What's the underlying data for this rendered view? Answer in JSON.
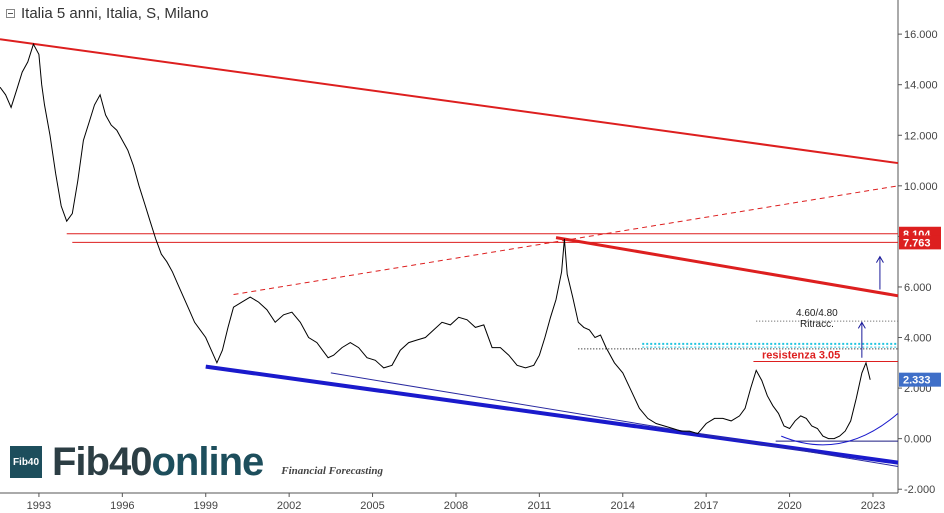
{
  "header": {
    "title": "Italia 5 anni, Italia, S, Milano"
  },
  "logo": {
    "badge": "Fib40",
    "word_a": "Fib40",
    "word_b": "online",
    "tagline": "Financial Forecasting"
  },
  "colors": {
    "price": "#000000",
    "red_channel": "#dd1f1f",
    "blue_support": "#1a1acc",
    "cyan_dotted": "#22c5e0",
    "price_label_bg": "#3f6fc8"
  },
  "chart_data": {
    "type": "line",
    "title": "Italia 5 anni, Italia, S, Milano",
    "xlabel": "",
    "ylabel": "",
    "x_ticks": [
      "1993",
      "1996",
      "1999",
      "2002",
      "2005",
      "2008",
      "2011",
      "2014",
      "2017",
      "2020",
      "2023"
    ],
    "y_ticks": [
      "16.000",
      "14.000",
      "12.000",
      "10.000",
      "8.000",
      "6.000",
      "4.000",
      "2.000",
      "0.000",
      "-2.000"
    ],
    "xlim": [
      1991.6,
      2023.9
    ],
    "ylim": [
      -2.15,
      17.35
    ],
    "grid": false,
    "series": [
      {
        "x": [
          1991.6,
          1991.8,
          1992.0,
          1992.2,
          1992.4,
          1992.6,
          1992.8,
          1993.0,
          1993.1,
          1993.2,
          1993.4,
          1993.6,
          1993.8,
          1994.0,
          1994.2,
          1994.4,
          1994.6,
          1994.8,
          1995.0,
          1995.2,
          1995.4,
          1995.6,
          1995.8,
          1996.0,
          1996.2,
          1996.4,
          1996.6,
          1996.8,
          1997.0,
          1997.2,
          1997.4,
          1997.6,
          1997.8,
          1998.0,
          1998.2,
          1998.4,
          1998.6,
          1998.8,
          1999.0,
          1999.2,
          1999.4,
          1999.6,
          1999.8,
          2000.0,
          2000.3,
          2000.6,
          2000.9,
          2001.2,
          2001.5,
          2001.8,
          2002.1,
          2002.4,
          2002.7,
          2003.0,
          2003.2,
          2003.4,
          2003.6,
          2003.9,
          2004.2,
          2004.5,
          2004.8,
          2005.1,
          2005.4,
          2005.7,
          2006.0,
          2006.3,
          2006.6,
          2006.9,
          2007.2,
          2007.5,
          2007.8,
          2008.1,
          2008.4,
          2008.7,
          2009.0,
          2009.3,
          2009.6,
          2009.9,
          2010.2,
          2010.5,
          2010.8,
          2011.0,
          2011.2,
          2011.4,
          2011.6,
          2011.8,
          2011.9,
          2012.0,
          2012.2,
          2012.4,
          2012.6,
          2012.8,
          2013.0,
          2013.2,
          2013.4,
          2013.7,
          2014.0,
          2014.3,
          2014.6,
          2014.9,
          2015.2,
          2015.5,
          2015.8,
          2016.1,
          2016.4,
          2016.7,
          2017.0,
          2017.3,
          2017.6,
          2017.9,
          2018.2,
          2018.4,
          2018.6,
          2018.8,
          2019.0,
          2019.2,
          2019.4,
          2019.6,
          2019.8,
          2020.0,
          2020.2,
          2020.4,
          2020.6,
          2020.8,
          2021.0,
          2021.2,
          2021.4,
          2021.6,
          2021.8,
          2022.0,
          2022.2,
          2022.4,
          2022.6,
          2022.75,
          2022.9
        ],
        "y": [
          13.9,
          13.6,
          13.1,
          13.8,
          14.5,
          14.9,
          15.6,
          15.2,
          14.0,
          13.2,
          12.0,
          10.5,
          9.2,
          8.6,
          8.9,
          10.2,
          11.8,
          12.5,
          13.2,
          13.6,
          12.8,
          12.4,
          12.2,
          11.8,
          11.4,
          10.8,
          10.0,
          9.3,
          8.6,
          7.9,
          7.3,
          7.0,
          6.6,
          6.1,
          5.6,
          5.1,
          4.6,
          4.3,
          4.0,
          3.5,
          3.0,
          3.5,
          4.4,
          5.2,
          5.4,
          5.6,
          5.4,
          5.1,
          4.6,
          4.9,
          5.0,
          4.6,
          4.0,
          3.8,
          3.5,
          3.2,
          3.3,
          3.6,
          3.8,
          3.6,
          3.2,
          3.1,
          2.8,
          2.9,
          3.5,
          3.8,
          3.9,
          4.0,
          4.3,
          4.6,
          4.5,
          4.8,
          4.7,
          4.4,
          4.5,
          3.6,
          3.6,
          3.3,
          2.9,
          2.8,
          2.9,
          3.3,
          4.0,
          4.8,
          5.5,
          6.6,
          7.9,
          6.5,
          5.6,
          4.6,
          4.4,
          4.3,
          4.0,
          4.1,
          3.6,
          3.0,
          2.6,
          1.9,
          1.2,
          0.8,
          0.6,
          0.5,
          0.4,
          0.3,
          0.3,
          0.2,
          0.6,
          0.8,
          0.8,
          0.7,
          0.9,
          1.2,
          2.0,
          2.7,
          2.3,
          1.7,
          1.3,
          1.0,
          0.5,
          0.4,
          0.7,
          0.9,
          0.8,
          0.5,
          0.4,
          0.1,
          0.0,
          0.0,
          0.1,
          0.3,
          0.7,
          1.6,
          2.6,
          3.0,
          2.33
        ]
      }
    ],
    "annotations": [
      {
        "text": "resistenza 3.05",
        "value": 3.05,
        "color": "#dd1f1f"
      },
      {
        "text": "4.60/4.80",
        "value": 4.7
      },
      {
        "text": "Ritracc.",
        "value": 4.45
      },
      {
        "text": "8.104",
        "value": 8.104,
        "color": "#dd1f1f"
      },
      {
        "text": "7.763",
        "value": 7.763,
        "color": "#dd1f1f"
      },
      {
        "text": "2.333",
        "value": 2.333,
        "color": "#3f6fc8"
      }
    ]
  }
}
